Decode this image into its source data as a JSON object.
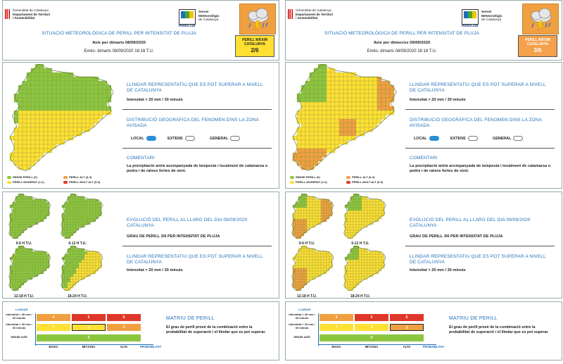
{
  "colors": {
    "green": "#8cc63f",
    "yellow": "#ffe033",
    "orange": "#f0a040",
    "red": "#e0362a",
    "blue": "#1d6fb8"
  },
  "header_common": {
    "gencat_line1": "Generalitat de Catalunya",
    "gencat_line2": "Departament de Territori",
    "gencat_line3": "i Sostenibilitat",
    "smc_name1": "Servei",
    "smc_name2": "Meteorològic",
    "smc_name3": "de Catalunya",
    "smc_brand": "meteo.cat",
    "title": "SITUACIÓ METEOROLÒGICA DE PERILL PER INTENSITAT DE PLUJA",
    "emes": "Emès: dimarts 08/09/2020 16:18 T.U.",
    "danger_label_1": "PERILL MÀXIM",
    "danger_label_2": "CATALUNYA",
    "weather_icon": "storm-cloud-icon"
  },
  "common": {
    "llindar_title": "LLINDAR REPRESENTATIU QUE ES POT SUPERAR A NIVELL DE CATALUNYA",
    "llindar_value": "Intensitat > 20 mm / 30 minuts",
    "distrib_title": "DISTRIBUCIÓ GEOGRÀFICA DEL FENOMEN DINS LA ZONA AVISADA",
    "opt_local": "LOCAL",
    "opt_extens": "EXTENS",
    "opt_general": "GENERAL",
    "comentari_title": "COMENTARI",
    "comentari_text": "La precipitació anirà acompanyada de tempesta i localment de calamarsa o pedra i de ratxes fortes de vent.",
    "legend": [
      "SENSE PERILL (0)",
      "PERILL MODERAT (1-2)",
      "PERILL ALT (3-4)",
      "PERILL MOLT ALT (5-6)"
    ],
    "mini_labels": [
      "0-6 H T.U.",
      "6-12 H T.U.",
      "12-18 H T.U.",
      "18-24 H T.U."
    ],
    "matrix_title": "MATRIU DE PERILL",
    "matrix_text": "El grau de perill prové de la combinació entre la probabilitat de superació i el llindar que es pot superar.",
    "matrix_ylabel": "LLINDAR",
    "matrix_row1": "Intensitat > 40 mm / 30 minuts",
    "matrix_row2": "Intensitat > 20 mm / 30 minuts",
    "matrix_row3": "SENSE AVÍS",
    "matrix_x": [
      "BAIXA",
      "MITJANA",
      "ALTA",
      "PROBABILITAT"
    ],
    "matrix_top_values": [
      "4",
      "5",
      "6"
    ],
    "matrix_mid_values": [
      "1",
      "2",
      "3"
    ],
    "matrix_bottom_value": "0"
  },
  "pages": [
    {
      "avis": "Avís per dimarts 08/09/2020",
      "danger_value": "2/6",
      "evo_title": "EVOLUCIÓ DEL PERILL AL LLARG DEL DIA 08/09/2020 CATALUNYA",
      "grau": "GRAU DE PERILL 2/6 PER INTENSITAT DE PLUJA",
      "selected_cell": "2"
    },
    {
      "avis": "Avís per dimecres 09/09/2020",
      "danger_value": "3/6",
      "evo_title": "EVOLUCIÓ DEL PERILL AL LLARG DEL DIA 09/09/2020 CATALUNYA",
      "grau": "GRAU DE PERILL 3/6 PER INTENSITAT DE PLUJA",
      "selected_cell": "3"
    }
  ]
}
